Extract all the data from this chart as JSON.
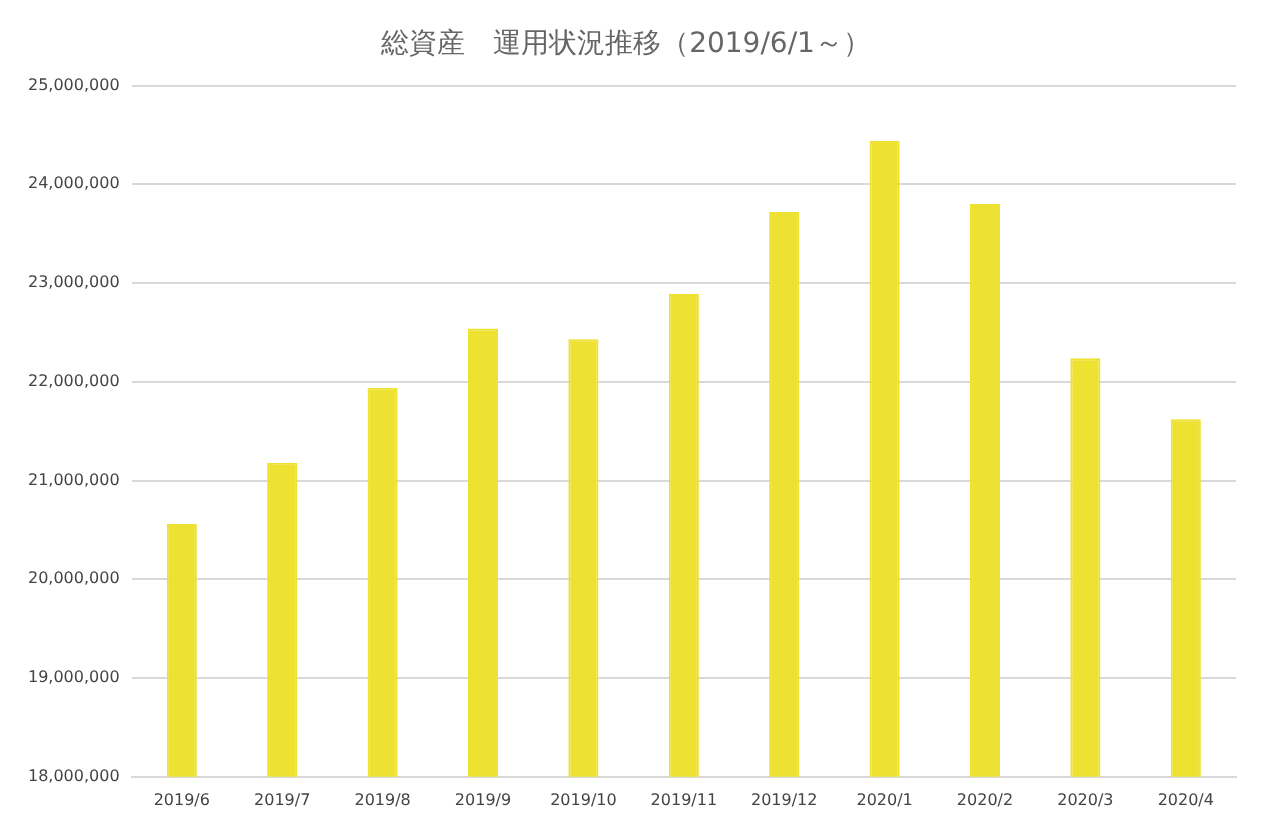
{
  "chart_data": {
    "type": "bar",
    "title": "総資産　運用状況推移（2019/6/1～）",
    "categories": [
      "2019/6",
      "2019/7",
      "2019/8",
      "2019/9",
      "2019/10",
      "2019/11",
      "2019/12",
      "2020/1",
      "2020/2",
      "2020/3",
      "2020/4"
    ],
    "values": [
      20560000,
      21180000,
      21940000,
      22540000,
      22430000,
      22890000,
      23720000,
      24440000,
      23800000,
      22240000,
      21620000
    ],
    "color": "#ede132",
    "ylim": [
      18000000,
      25000000
    ],
    "yticks": [
      {
        "value": 18000000,
        "label": "18,000,000"
      },
      {
        "value": 19000000,
        "label": "19,000,000"
      },
      {
        "value": 20000000,
        "label": "20,000,000"
      },
      {
        "value": 21000000,
        "label": "21,000,000"
      },
      {
        "value": 22000000,
        "label": "22,000,000"
      },
      {
        "value": 23000000,
        "label": "23,000,000"
      },
      {
        "value": 24000000,
        "label": "24,000,000"
      },
      {
        "value": 25000000,
        "label": "25,000,000"
      }
    ],
    "grid": "y",
    "legend": false
  }
}
